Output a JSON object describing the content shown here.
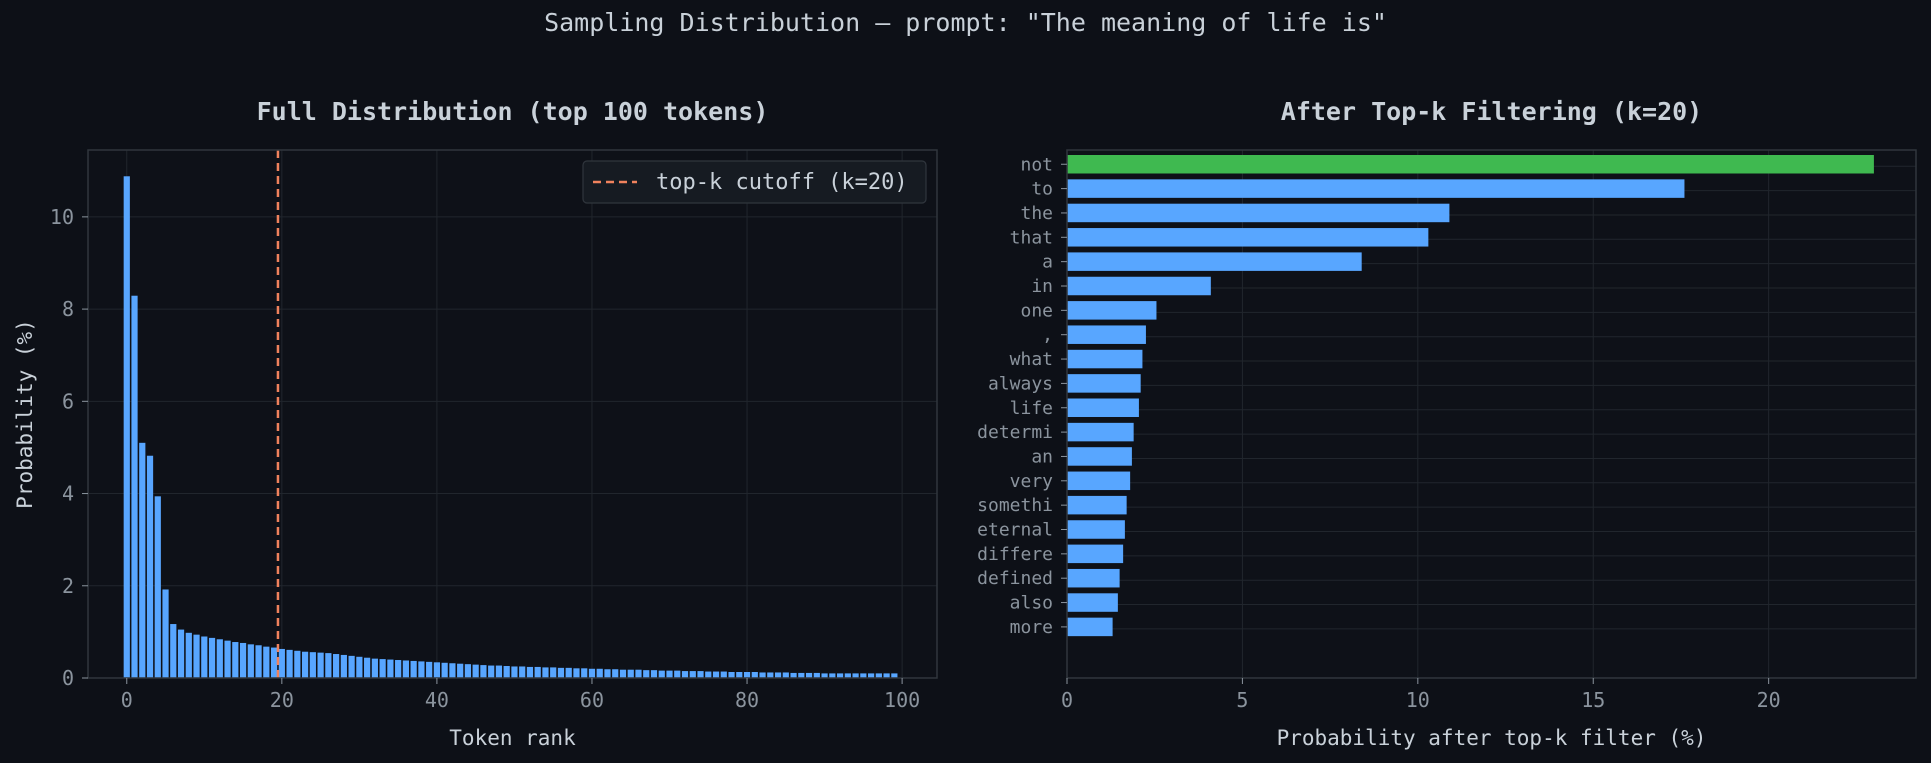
{
  "suptitle": "Sampling Distribution — prompt: \"The meaning of life is\"",
  "colors": {
    "background": "#0d1017",
    "axes_bg": "#0e1118",
    "grid": "#21262d",
    "spine": "#30363d",
    "bar": "#58a6ff",
    "highlight": "#3fb950",
    "cutoff": "#f0825d",
    "text": "#c9d1d9",
    "tick_text": "#8b949e"
  },
  "chart_data": [
    {
      "type": "bar",
      "title": "Full Distribution (top 100 tokens)",
      "xlabel": "Token rank",
      "ylabel": "Probability (%)",
      "xlim": [
        -5,
        104.5
      ],
      "ylim": [
        0,
        11.45
      ],
      "xticks": [
        0,
        20,
        40,
        60,
        80,
        100
      ],
      "yticks": [
        0,
        2,
        4,
        6,
        8,
        10
      ],
      "grid": true,
      "legend": {
        "position": "top-right",
        "entries": [
          {
            "label": "top-k cutoff (k=20)",
            "style": "dashed"
          }
        ]
      },
      "cutoff_x": 19.5,
      "x": [
        0,
        1,
        2,
        3,
        4,
        5,
        6,
        7,
        8,
        9,
        10,
        11,
        12,
        13,
        14,
        15,
        16,
        17,
        18,
        19,
        20,
        21,
        22,
        23,
        24,
        25,
        26,
        27,
        28,
        29,
        30,
        31,
        32,
        33,
        34,
        35,
        36,
        37,
        38,
        39,
        40,
        41,
        42,
        43,
        44,
        45,
        46,
        47,
        48,
        49,
        50,
        51,
        52,
        53,
        54,
        55,
        56,
        57,
        58,
        59,
        60,
        61,
        62,
        63,
        64,
        65,
        66,
        67,
        68,
        69,
        70,
        71,
        72,
        73,
        74,
        75,
        76,
        77,
        78,
        79,
        80,
        81,
        82,
        83,
        84,
        85,
        86,
        87,
        88,
        89,
        90,
        91,
        92,
        93,
        94,
        95,
        96,
        97,
        98,
        99
      ],
      "values": [
        10.88,
        8.29,
        5.1,
        4.82,
        3.94,
        1.92,
        1.17,
        1.05,
        0.98,
        0.94,
        0.9,
        0.87,
        0.84,
        0.81,
        0.78,
        0.76,
        0.73,
        0.71,
        0.68,
        0.66,
        0.63,
        0.61,
        0.59,
        0.57,
        0.56,
        0.55,
        0.54,
        0.52,
        0.5,
        0.48,
        0.46,
        0.44,
        0.42,
        0.41,
        0.4,
        0.39,
        0.38,
        0.37,
        0.36,
        0.35,
        0.34,
        0.33,
        0.32,
        0.31,
        0.3,
        0.29,
        0.28,
        0.27,
        0.27,
        0.26,
        0.25,
        0.25,
        0.24,
        0.24,
        0.23,
        0.23,
        0.22,
        0.22,
        0.21,
        0.21,
        0.2,
        0.2,
        0.19,
        0.19,
        0.18,
        0.18,
        0.18,
        0.17,
        0.17,
        0.16,
        0.16,
        0.16,
        0.15,
        0.15,
        0.15,
        0.14,
        0.14,
        0.14,
        0.13,
        0.13,
        0.13,
        0.13,
        0.12,
        0.12,
        0.12,
        0.12,
        0.11,
        0.11,
        0.11,
        0.11,
        0.1,
        0.1,
        0.1,
        0.1,
        0.1,
        0.1,
        0.1,
        0.1,
        0.1,
        0.1
      ]
    },
    {
      "type": "bar",
      "orientation": "horizontal",
      "title": "After Top-k Filtering (k=20)",
      "xlabel": "Probability after top-k filter (%)",
      "ylabel": "",
      "xlim": [
        0,
        24.2
      ],
      "xticks": [
        0,
        5,
        10,
        15,
        20
      ],
      "grid": true,
      "highlight_index": 0,
      "categories": [
        "not",
        "to",
        "the",
        "that",
        "a",
        "in",
        "one",
        ",",
        "what",
        "always",
        "life",
        "determi",
        "an",
        "very",
        "somethi",
        "eternal",
        "differe",
        "defined",
        "also",
        "more"
      ],
      "values": [
        23.0,
        17.6,
        10.9,
        10.3,
        8.4,
        4.1,
        2.55,
        2.25,
        2.15,
        2.1,
        2.05,
        1.9,
        1.85,
        1.8,
        1.7,
        1.65,
        1.6,
        1.5,
        1.45,
        1.3
      ]
    }
  ]
}
